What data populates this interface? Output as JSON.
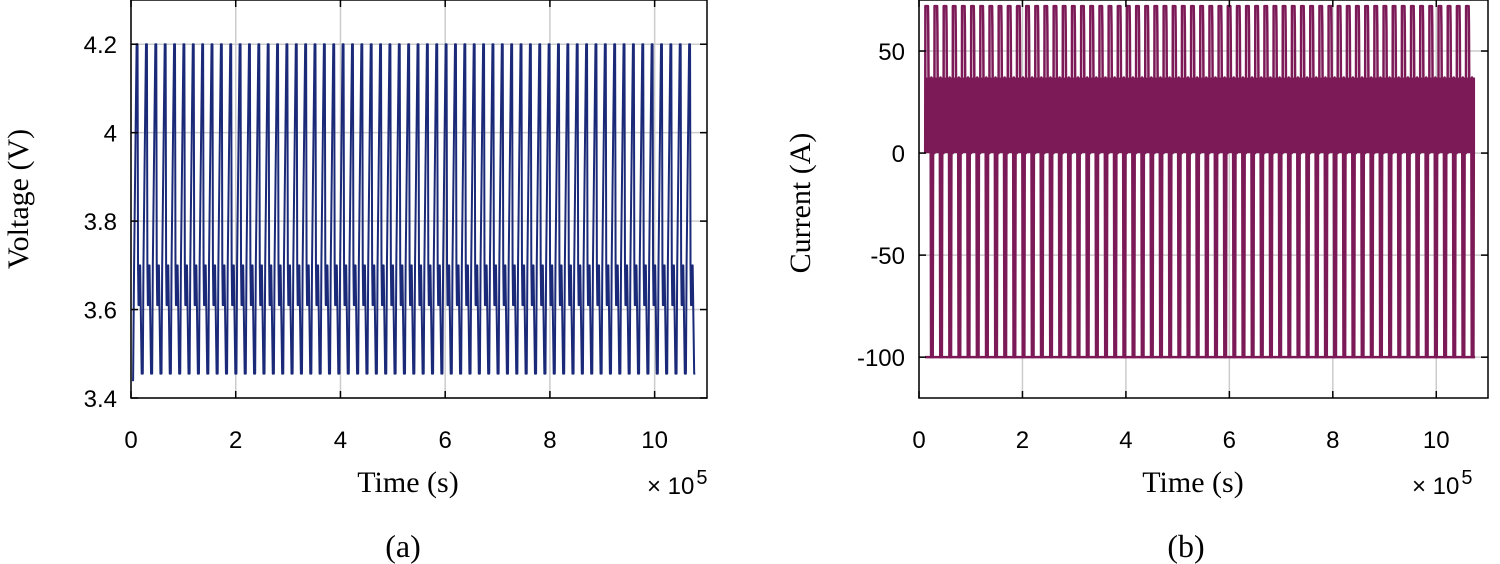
{
  "chart_data": [
    {
      "type": "line",
      "caption": "(a)",
      "xlabel": "Time (s)",
      "ylabel": "Voltage (V)",
      "x_multiplier": "× 10",
      "x_multiplier_exp": "5",
      "xlim": [
        0,
        11
      ],
      "ylim": [
        3.4,
        4.3
      ],
      "xticks": [
        0,
        2,
        4,
        6,
        8,
        10
      ],
      "xtick_labels": [
        "0",
        "2",
        "4",
        "6",
        "8",
        "10"
      ],
      "yticks": [
        3.4,
        3.6,
        3.8,
        4.0,
        4.2
      ],
      "ytick_labels": [
        "3.4",
        "3.6",
        "3.8",
        "4",
        "4.2"
      ],
      "grid": true,
      "color": "#1b2a78",
      "series": [
        {
          "name": "Voltage",
          "pattern": "charge-discharge cycling",
          "x_start": 0.02,
          "x_end": 10.75,
          "cycles": 60,
          "v_start": 3.44,
          "v_min": 3.455,
          "v_plateau": 3.7,
          "v_low_band": 3.61,
          "v_max": 4.2
        }
      ]
    },
    {
      "type": "line",
      "caption": "(b)",
      "xlabel": "Time (s)",
      "ylabel": "Current (A)",
      "x_multiplier": "× 10",
      "x_multiplier_exp": "5",
      "xlim": [
        0,
        11
      ],
      "ylim": [
        -120,
        75
      ],
      "xticks": [
        0,
        2,
        4,
        6,
        8,
        10
      ],
      "xtick_labels": [
        "0",
        "2",
        "4",
        "6",
        "8",
        "10"
      ],
      "yticks": [
        -100,
        -50,
        0,
        50
      ],
      "ytick_labels": [
        "-100",
        "-50",
        "0",
        "50"
      ],
      "grid": true,
      "color": "#7c1a58",
      "series": [
        {
          "name": "Current",
          "pattern": "pulsed charge-discharge current",
          "x_start": 0.12,
          "x_end": 10.75,
          "cycles": 60,
          "i_peak": 72,
          "i_high": 62,
          "i_band_high": 37,
          "i_band_low": 0,
          "i_min": -100
        }
      ]
    }
  ]
}
